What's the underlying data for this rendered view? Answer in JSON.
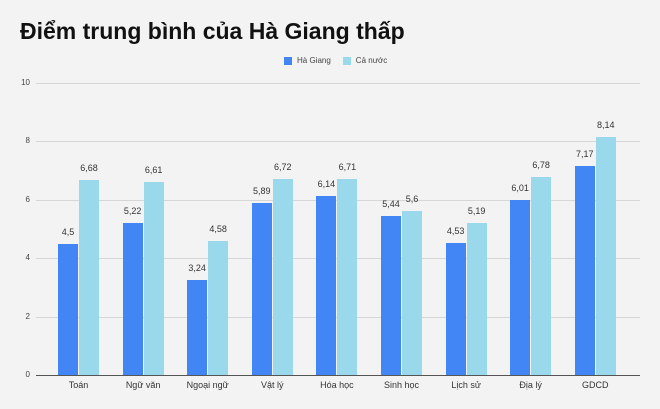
{
  "title": "Điểm trung bình của Hà Giang thấp",
  "legend": [
    {
      "label": "Hà Giang",
      "color": "#4285f4"
    },
    {
      "label": "Cả nước",
      "color": "#9ad8eb"
    }
  ],
  "chart_data": {
    "type": "bar",
    "title": "Điểm trung bình của Hà Giang thấp",
    "xlabel": "",
    "ylabel": "",
    "ylim": [
      0,
      10
    ],
    "yticks": [
      0,
      2,
      4,
      6,
      8,
      10
    ],
    "grid": true,
    "legend_position": "top",
    "categories": [
      "Toán",
      "Ngữ văn",
      "Ngoại ngữ",
      "Vật lý",
      "Hóa học",
      "Sinh học",
      "Lịch sử",
      "Địa lý",
      "GDCD"
    ],
    "series": [
      {
        "name": "Hà Giang",
        "color": "#4285f4",
        "values": [
          4.5,
          5.22,
          3.24,
          5.89,
          6.14,
          5.44,
          4.53,
          6.01,
          7.17
        ],
        "labels": [
          "4,5",
          "5,22",
          "3,24",
          "5,89",
          "6,14",
          "5,44",
          "4,53",
          "6,01",
          "7,17"
        ]
      },
      {
        "name": "Cả nước",
        "color": "#9ad8eb",
        "values": [
          6.68,
          6.61,
          4.58,
          6.72,
          6.71,
          5.6,
          5.19,
          6.78,
          8.14
        ],
        "labels": [
          "6,68",
          "6,61",
          "4,58",
          "6,72",
          "6,71",
          "5,6",
          "5,19",
          "6,78",
          "8,14"
        ]
      }
    ]
  }
}
